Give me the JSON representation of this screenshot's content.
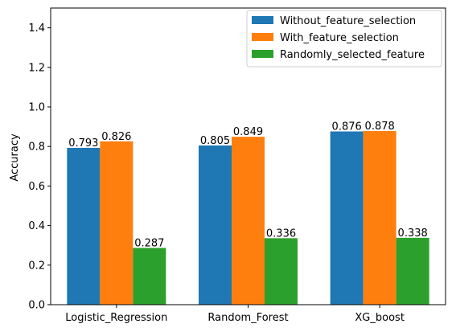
{
  "chart_data": {
    "type": "bar",
    "categories": [
      "Logistic_Regression",
      "Random_Forest",
      "XG_boost"
    ],
    "series": [
      {
        "name": "Without_feature_selection",
        "color": "#1f77b4",
        "values": [
          0.793,
          0.805,
          0.876
        ]
      },
      {
        "name": "With_feature_selection",
        "color": "#ff7f0e",
        "values": [
          0.826,
          0.849,
          0.878
        ]
      },
      {
        "name": "Randomly_selected_feature",
        "color": "#2ca02c",
        "values": [
          0.287,
          0.336,
          0.338
        ]
      }
    ],
    "data_labels": [
      [
        "0.793",
        "0.805",
        "0.876"
      ],
      [
        "0.826",
        "0.849",
        "0.878"
      ],
      [
        "0.287",
        "0.336",
        "0.338"
      ]
    ],
    "title": "",
    "xlabel": "",
    "ylabel": "Accuracy",
    "ylim": [
      0,
      1.5
    ],
    "yticks": [
      0.0,
      0.2,
      0.4,
      0.6,
      0.8,
      1.0,
      1.2,
      1.4
    ],
    "ytick_labels": [
      "0.0",
      "0.2",
      "0.4",
      "0.6",
      "0.8",
      "1.0",
      "1.2",
      "1.4"
    ],
    "grid": false,
    "legend_position": "top-right"
  }
}
